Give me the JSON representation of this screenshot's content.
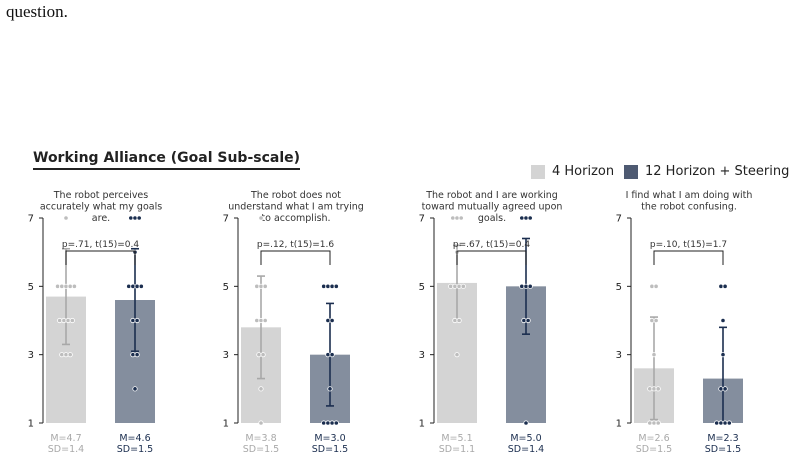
{
  "caption_tail": "question.",
  "figure_title": "Working Alliance (Goal Sub-scale)",
  "colors": {
    "horizon4": "#d4d4d4",
    "horizon12": "#848e9e",
    "horizon12_dark": "#1b2e4f",
    "horizon4_point": "#bdbdbd"
  },
  "legend": [
    {
      "label": "4 Horizon",
      "color": "#d4d4d4"
    },
    {
      "label": "12 Horizon + Steering",
      "color": "#4e5a72"
    }
  ],
  "chart_data": [
    {
      "type": "bar",
      "title": "The robot perceives accurately what my goals are.",
      "title_lines": [
        "The robot perceives",
        "accurately what my goals",
        "are."
      ],
      "categories": [
        "4 Horizon",
        "12 Horizon + Steering"
      ],
      "ylim": [
        1,
        7
      ],
      "yticks": [
        1,
        3,
        5,
        7
      ],
      "annotation": "p=.71, t(15)=0.4",
      "series": [
        {
          "mean": 4.7,
          "sd": 1.4,
          "stat": "M=4.7",
          "sd_label": "SD=1.4",
          "points": [
            3,
            3,
            3,
            4,
            4,
            4,
            4,
            5,
            5,
            5,
            5,
            5,
            7
          ]
        },
        {
          "mean": 4.6,
          "sd": 1.5,
          "stat": "M=4.6",
          "sd_label": "SD=1.5",
          "points": [
            2,
            3,
            3,
            4,
            4,
            5,
            5,
            5,
            5,
            6,
            7,
            7,
            7
          ]
        }
      ]
    },
    {
      "type": "bar",
      "title": "The robot does not understand what I am trying to accomplish.",
      "title_lines": [
        "The robot does not",
        "understand what I am trying",
        "to accomplish."
      ],
      "categories": [
        "4 Horizon",
        "12 Horizon + Steering"
      ],
      "ylim": [
        1,
        7
      ],
      "yticks": [
        1,
        3,
        5,
        7
      ],
      "annotation": "p=.12, t(15)=1.6",
      "series": [
        {
          "mean": 3.8,
          "sd": 1.5,
          "stat": "M=3.8",
          "sd_label": "SD=1.5",
          "points": [
            1,
            2,
            3,
            3,
            4,
            4,
            4,
            5,
            5,
            5,
            7
          ]
        },
        {
          "mean": 3.0,
          "sd": 1.5,
          "stat": "M=3.0",
          "sd_label": "SD=1.5",
          "points": [
            1,
            1,
            1,
            1,
            2,
            3,
            3,
            4,
            4,
            5,
            5,
            5,
            5
          ]
        }
      ]
    },
    {
      "type": "bar",
      "title": "The robot and I are working toward mutually agreed upon goals.",
      "title_lines": [
        "The robot and I are working",
        "toward mutually agreed upon",
        "goals."
      ],
      "categories": [
        "4 Horizon",
        "12 Horizon + Steering"
      ],
      "ylim": [
        1,
        7
      ],
      "yticks": [
        1,
        3,
        5,
        7
      ],
      "annotation": "p=.67, t(15)=0.4",
      "series": [
        {
          "mean": 5.1,
          "sd": 1.1,
          "stat": "M=5.1",
          "sd_label": "SD=1.1",
          "points": [
            3,
            4,
            4,
            5,
            5,
            5,
            5,
            6,
            7,
            7,
            7
          ]
        },
        {
          "mean": 5.0,
          "sd": 1.4,
          "stat": "M=5.0",
          "sd_label": "SD=1.4",
          "points": [
            1,
            4,
            4,
            5,
            5,
            5,
            7,
            7,
            7
          ]
        }
      ]
    },
    {
      "type": "bar",
      "title": "I find what I am doing with the robot confusing.",
      "title_lines": [
        "I find what I am doing with",
        "the robot confusing."
      ],
      "categories": [
        "4 Horizon",
        "12 Horizon + Steering"
      ],
      "ylim": [
        1,
        7
      ],
      "yticks": [
        1,
        3,
        5,
        7
      ],
      "annotation": "p=.10, t(15)=1.7",
      "series": [
        {
          "mean": 2.6,
          "sd": 1.5,
          "stat": "M=2.6",
          "sd_label": "SD=1.5",
          "points": [
            1,
            1,
            1,
            2,
            2,
            2,
            3,
            4,
            4,
            5,
            5
          ]
        },
        {
          "mean": 2.3,
          "sd": 1.5,
          "stat": "M=2.3",
          "sd_label": "SD=1.5",
          "points": [
            1,
            1,
            1,
            1,
            2,
            2,
            3,
            4,
            5,
            5
          ]
        }
      ]
    }
  ]
}
